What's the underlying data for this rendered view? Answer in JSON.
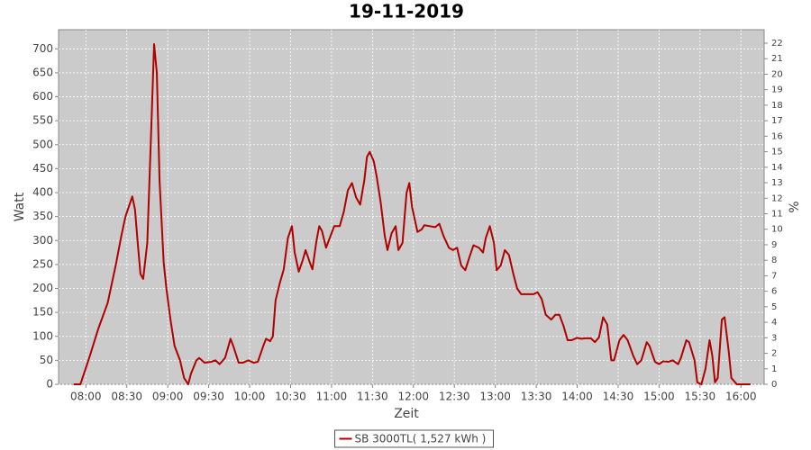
{
  "chart_data": {
    "type": "line",
    "title": "19-11-2019",
    "x_label": "Zeit",
    "y_label": "Watt",
    "y2_label": "%",
    "xlim": [
      "07:40",
      "16:17"
    ],
    "xticks": [
      "08:00",
      "08:30",
      "09:00",
      "09:30",
      "10:00",
      "10:30",
      "11:00",
      "11:30",
      "12:00",
      "12:30",
      "13:00",
      "13:30",
      "14:00",
      "14:30",
      "15:00",
      "15:30",
      "16:00"
    ],
    "ylim": [
      0,
      740
    ],
    "yticks": [
      0,
      50,
      100,
      150,
      200,
      250,
      300,
      350,
      400,
      450,
      500,
      550,
      600,
      650,
      700
    ],
    "y2lim": [
      0,
      22.87
    ],
    "y2ticks": [
      0,
      1,
      2,
      3,
      4,
      5,
      6,
      7,
      8,
      9,
      10,
      11,
      12,
      13,
      14,
      15,
      16,
      17,
      18,
      19,
      20,
      21,
      22
    ],
    "grid": true,
    "legend": "bottom",
    "x": [
      "07:51",
      "07:56",
      "08:03",
      "08:09",
      "08:16",
      "08:22",
      "08:26",
      "08:29",
      "08:34",
      "08:36",
      "08:38",
      "08:40",
      "08:42",
      "08:45",
      "08:48",
      "08:50",
      "08:52",
      "08:54",
      "08:57",
      "08:59",
      "09:02",
      "09:05",
      "09:09",
      "09:12",
      "09:15",
      "09:17",
      "09:21",
      "09:23",
      "09:27",
      "09:32",
      "09:35",
      "09:38",
      "09:42",
      "09:46",
      "09:48",
      "09:52",
      "09:55",
      "09:59",
      "10:03",
      "10:06",
      "10:10",
      "10:12",
      "10:15",
      "10:17",
      "10:19",
      "10:22",
      "10:25",
      "10:28",
      "10:31",
      "10:33",
      "10:36",
      "10:39",
      "10:41",
      "10:44",
      "10:46",
      "10:49",
      "10:51",
      "10:53",
      "10:56",
      "10:58",
      "11:02",
      "11:06",
      "11:09",
      "11:12",
      "11:15",
      "11:18",
      "11:21",
      "11:24",
      "11:26",
      "11:28",
      "11:31",
      "11:33",
      "11:36",
      "11:39",
      "11:41",
      "11:44",
      "11:47",
      "11:49",
      "11:52",
      "11:55",
      "11:57",
      "11:59",
      "12:03",
      "12:06",
      "12:08",
      "12:12",
      "12:16",
      "12:19",
      "12:22",
      "12:26",
      "12:29",
      "12:32",
      "12:35",
      "12:38",
      "12:41",
      "12:44",
      "12:48",
      "12:51",
      "12:53",
      "12:56",
      "12:59",
      "13:01",
      "13:04",
      "13:07",
      "13:10",
      "13:13",
      "13:16",
      "13:19",
      "13:23",
      "13:28",
      "13:31",
      "13:34",
      "13:37",
      "13:41",
      "13:44",
      "13:47",
      "13:50",
      "13:53",
      "13:56",
      "14:00",
      "14:03",
      "14:06",
      "14:10",
      "14:13",
      "14:16",
      "14:19",
      "14:22",
      "14:25",
      "14:27",
      "14:31",
      "14:34",
      "14:37",
      "14:41",
      "14:44",
      "14:47",
      "14:51",
      "14:53",
      "14:57",
      "15:00",
      "15:03",
      "15:07",
      "15:10",
      "15:14",
      "15:16",
      "15:20",
      "15:22",
      "15:26",
      "15:28",
      "15:31",
      "15:34",
      "15:37",
      "15:39",
      "15:41",
      "15:43",
      "15:46",
      "15:48",
      "15:51",
      "15:53",
      "15:57",
      "16:07"
    ],
    "series": [
      {
        "name": "SB 3000TL( 1,527 kWh )",
        "color": "#b00000",
        "values": [
          0,
          0,
          60,
          115,
          170,
          250,
          310,
          350,
          392,
          365,
          295,
          230,
          220,
          295,
          540,
          710,
          650,
          425,
          255,
          200,
          135,
          80,
          50,
          13,
          0,
          22,
          50,
          55,
          45,
          47,
          50,
          42,
          55,
          95,
          80,
          45,
          45,
          50,
          45,
          47,
          80,
          95,
          90,
          100,
          175,
          210,
          240,
          305,
          330,
          275,
          235,
          260,
          280,
          255,
          240,
          300,
          330,
          320,
          285,
          300,
          330,
          330,
          360,
          405,
          420,
          390,
          375,
          425,
          475,
          485,
          465,
          435,
          380,
          310,
          280,
          315,
          330,
          280,
          295,
          400,
          420,
          370,
          318,
          323,
          332,
          330,
          328,
          335,
          310,
          285,
          280,
          285,
          248,
          238,
          265,
          290,
          285,
          275,
          305,
          330,
          295,
          238,
          248,
          280,
          270,
          233,
          200,
          188,
          188,
          188,
          192,
          178,
          145,
          135,
          145,
          145,
          122,
          92,
          92,
          97,
          95,
          96,
          96,
          88,
          98,
          140,
          125,
          50,
          50,
          92,
          103,
          92,
          60,
          42,
          50,
          88,
          80,
          47,
          42,
          48,
          47,
          50,
          42,
          55,
          92,
          88,
          50,
          4,
          0,
          32,
          92,
          60,
          4,
          13,
          135,
          140,
          70,
          13,
          0,
          0
        ]
      }
    ]
  }
}
